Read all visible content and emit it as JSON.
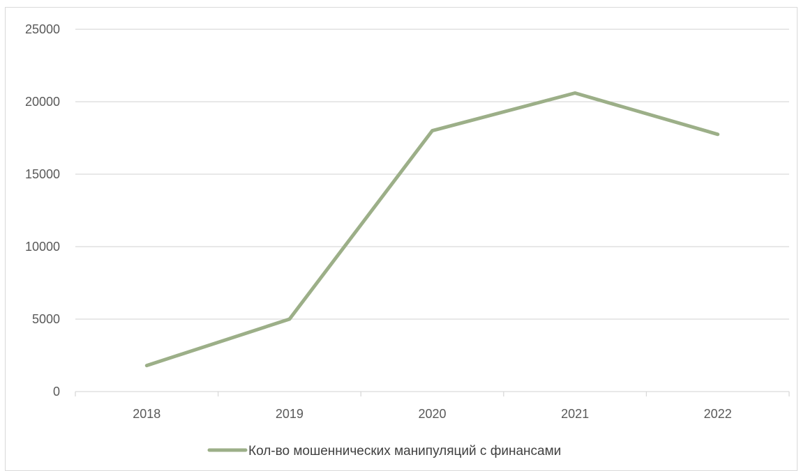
{
  "chart_data": {
    "type": "line",
    "title": "",
    "xlabel": "",
    "ylabel": "",
    "categories": [
      "2018",
      "2019",
      "2020",
      "2021",
      "2022"
    ],
    "series": [
      {
        "name": "Кол-во мошеннических манипуляций с финансами",
        "values": [
          1800,
          5000,
          18000,
          20600,
          17750
        ],
        "color": "#9caf88"
      }
    ],
    "ylim": [
      0,
      25000
    ],
    "yticks": [
      0,
      5000,
      10000,
      15000,
      20000,
      25000
    ],
    "grid": true,
    "legend_position": "bottom",
    "gridline_color": "#d9d9d9",
    "axis_color": "#d9d9d9",
    "label_color": "#595959"
  }
}
